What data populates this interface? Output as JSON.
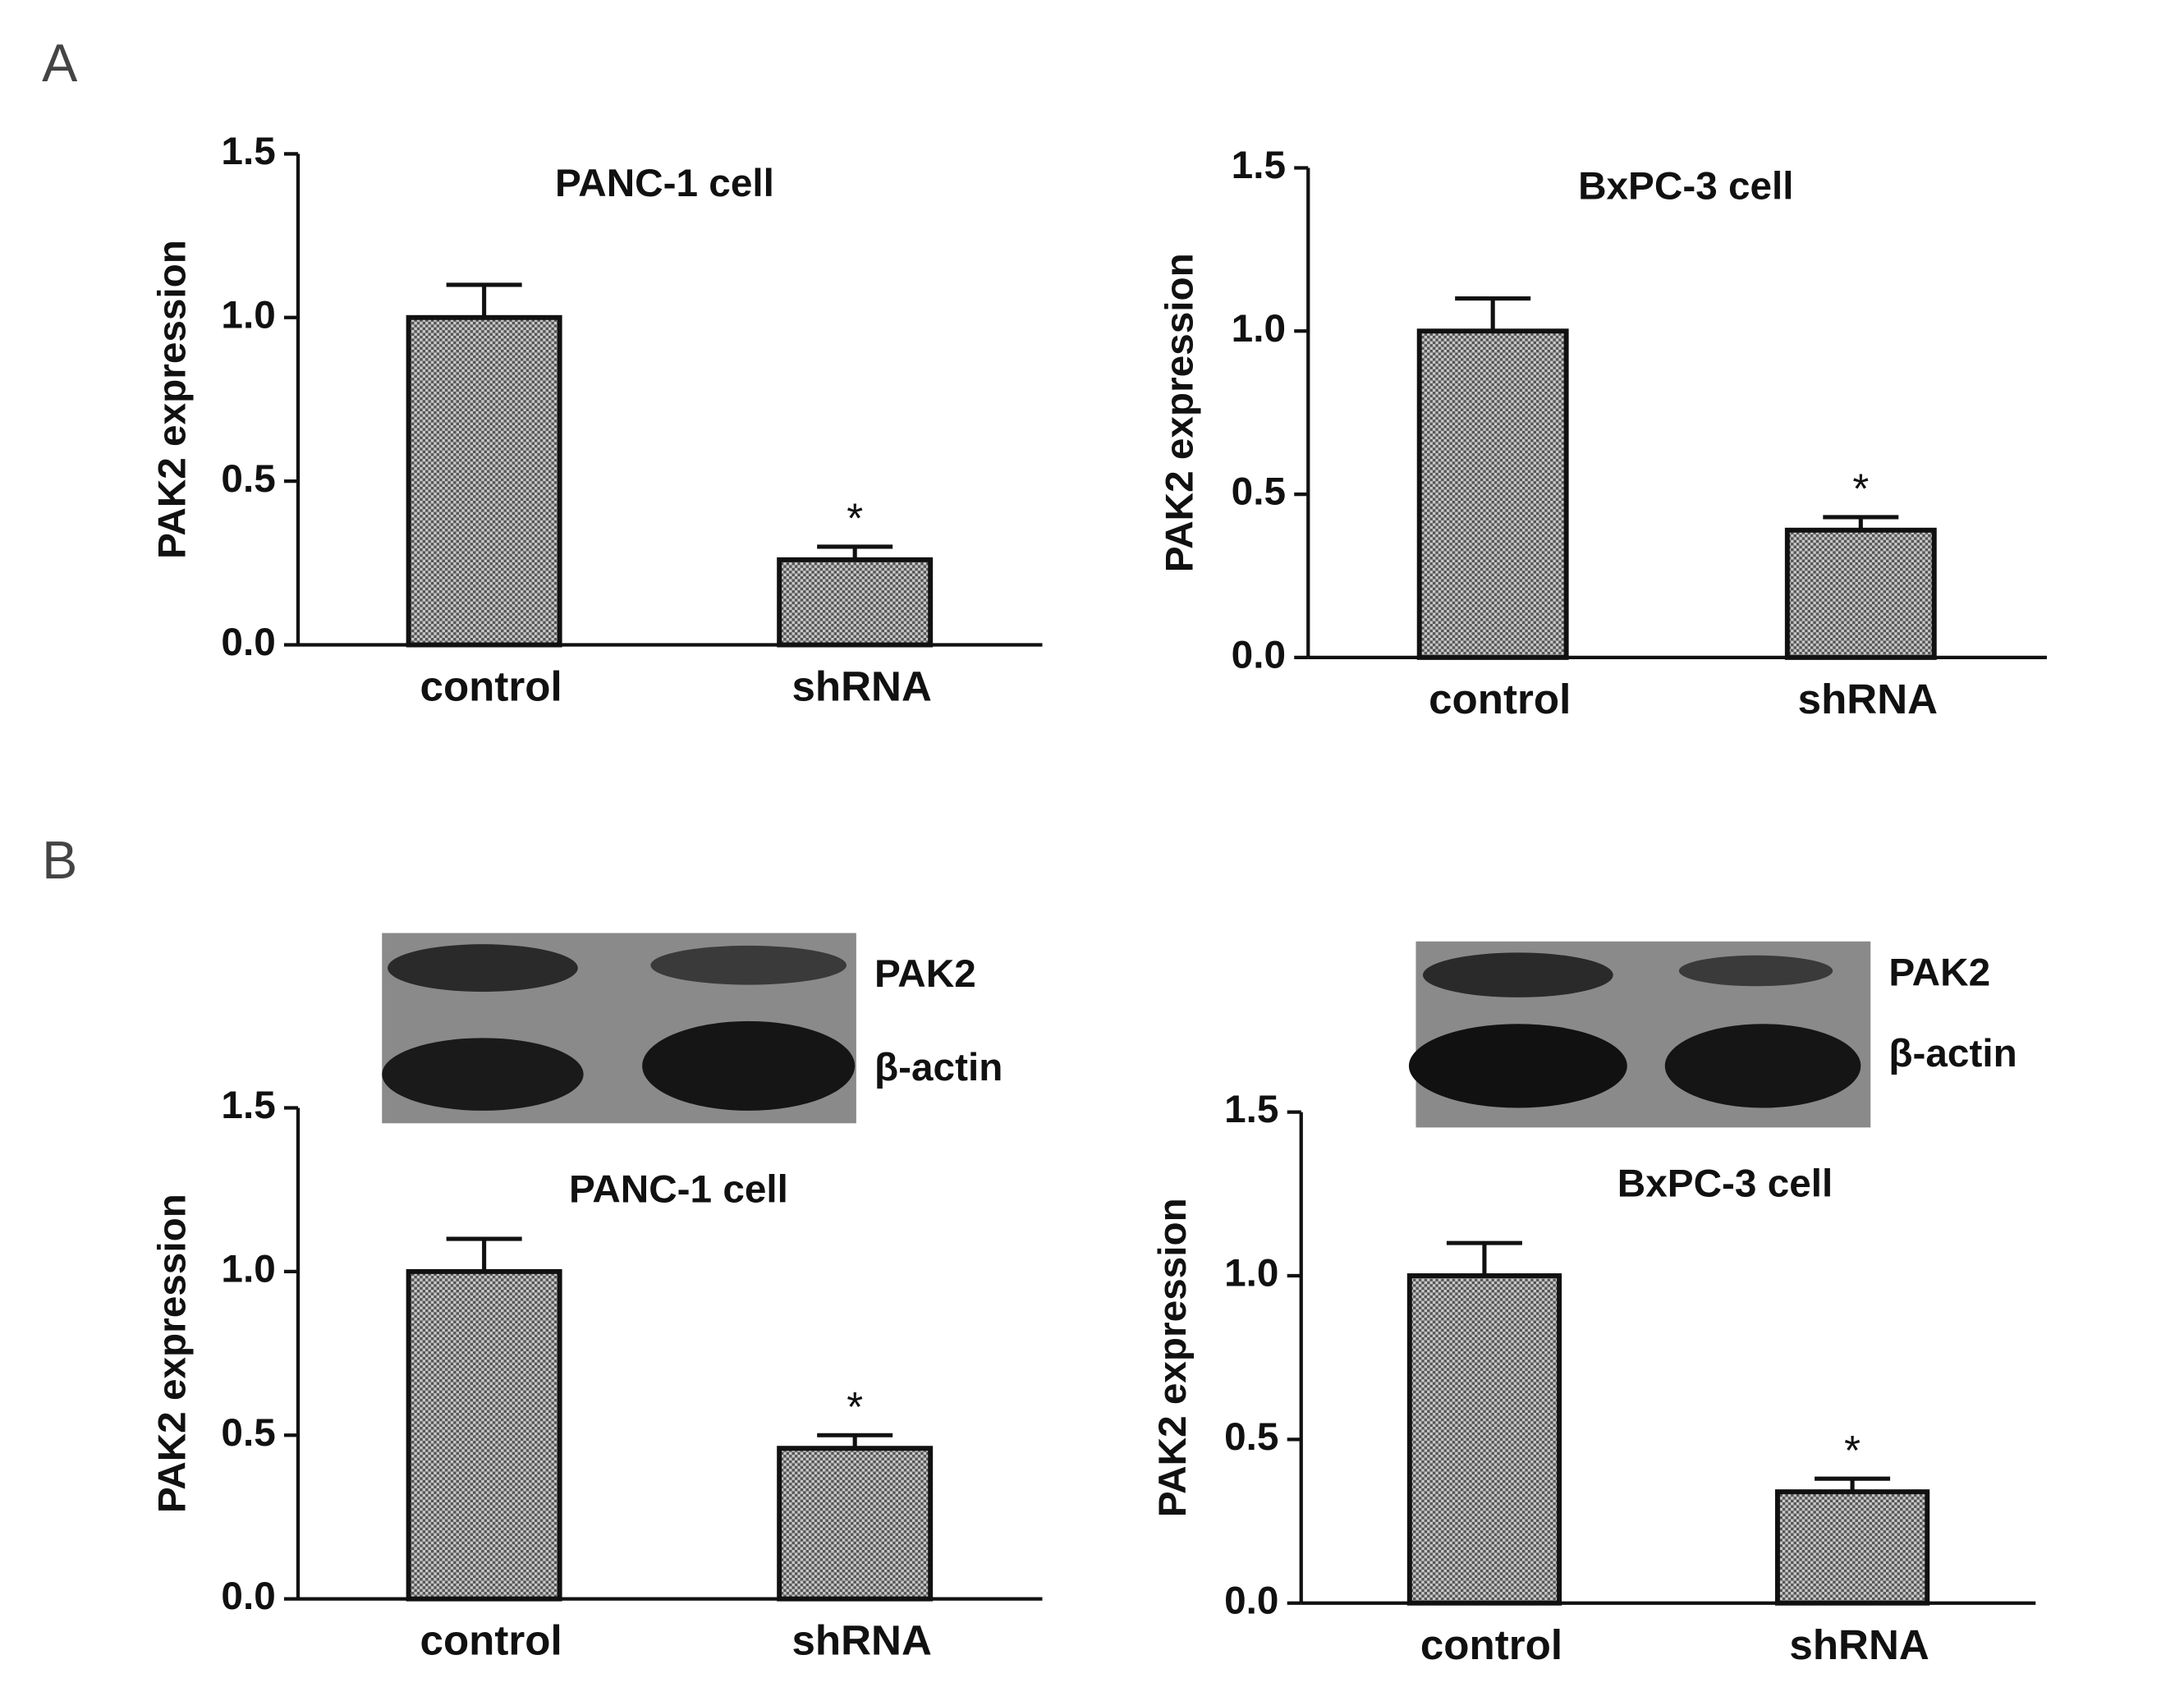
{
  "panel_labels": [
    "A",
    "B"
  ],
  "chart_data": [
    {
      "type": "bar",
      "title": "PANC-1 cell",
      "y_label": "PAK2 expression",
      "categories": [
        "control",
        "shRNA"
      ],
      "values": [
        1.0,
        0.26
      ],
      "errors": [
        0.1,
        0.04
      ],
      "significance": [
        null,
        "*"
      ],
      "color": "#8c8c8c",
      "ylim": [
        0,
        1.5
      ],
      "yticks": [
        {
          "value": 0,
          "label": "0.0"
        },
        0.5,
        {
          "value": 1,
          "label": "1.0"
        },
        1.5
      ]
    },
    {
      "type": "bar",
      "title": "BxPC-3 cell",
      "y_label": "PAK2 expression",
      "categories": [
        "control",
        "shRNA"
      ],
      "values": [
        1.0,
        0.39
      ],
      "errors": [
        0.1,
        0.04
      ],
      "significance": [
        null,
        "*"
      ],
      "color": "#8c8c8c",
      "ylim": [
        0,
        1.5
      ],
      "yticks": [
        {
          "value": 0,
          "label": "0.0"
        },
        0.5,
        {
          "value": 1,
          "label": "1.0"
        },
        1.5
      ]
    },
    {
      "type": "bar",
      "title": "PANC-1 cell",
      "y_label": "PAK2 expression",
      "blot_labels": [
        "PAK2",
        "β-actin"
      ],
      "categories": [
        "control",
        "shRNA"
      ],
      "values": [
        1.0,
        0.46
      ],
      "errors": [
        0.1,
        0.04
      ],
      "significance": [
        null,
        "*"
      ],
      "color": "#8c8c8c",
      "ylim": [
        0,
        1.5
      ],
      "yticks": [
        {
          "value": 0,
          "label": "0.0"
        },
        0.5,
        {
          "value": 1,
          "label": "1.0"
        },
        1.5
      ]
    },
    {
      "type": "bar",
      "title": "BxPC-3 cell",
      "y_label": "PAK2 expression",
      "blot_labels": [
        "PAK2",
        "β-actin"
      ],
      "categories": [
        "control",
        "shRNA"
      ],
      "values": [
        1.0,
        0.34
      ],
      "errors": [
        0.1,
        0.04
      ],
      "significance": [
        null,
        "*"
      ],
      "color": "#8c8c8c",
      "ylim": [
        0,
        1.5
      ],
      "yticks": [
        {
          "value": 0,
          "label": "0.0"
        },
        0.5,
        {
          "value": 1,
          "label": "1.0"
        },
        1.5
      ]
    }
  ]
}
